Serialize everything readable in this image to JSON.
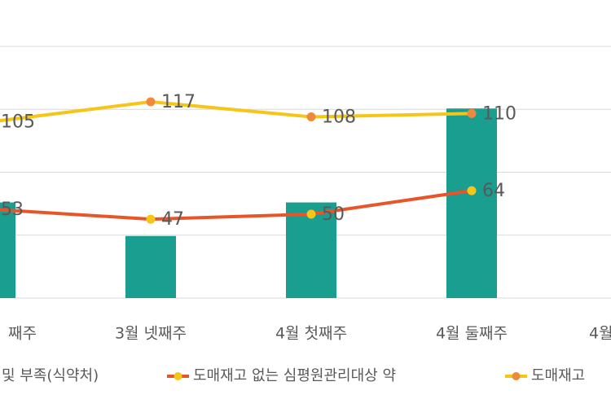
{
  "chart_data": {
    "type": "bar-line",
    "categories": [
      "째주",
      "3월 넷째주",
      "4월 첫째주",
      "4월 둘째주",
      "4월"
    ],
    "ylim": [
      0,
      150
    ],
    "yticks": [
      0,
      37.5,
      75,
      112.5,
      150
    ],
    "grid": true,
    "series": [
      {
        "name": "및 부족(식약처)",
        "type": "bar",
        "color": "#1a9e8f",
        "values": [
          57,
          37,
          57,
          113,
          null
        ]
      },
      {
        "name": "도매재고 없는 심평원관리대상 약",
        "type": "line",
        "color": "#e8552a",
        "marker_color": "#f5c518",
        "values": [
          53,
          47,
          50,
          64,
          null
        ]
      },
      {
        "name": "도매재고",
        "type": "line",
        "color": "#f5c518",
        "marker_color": "#f08a3a",
        "values": [
          105,
          117,
          108,
          110,
          null
        ]
      }
    ]
  }
}
